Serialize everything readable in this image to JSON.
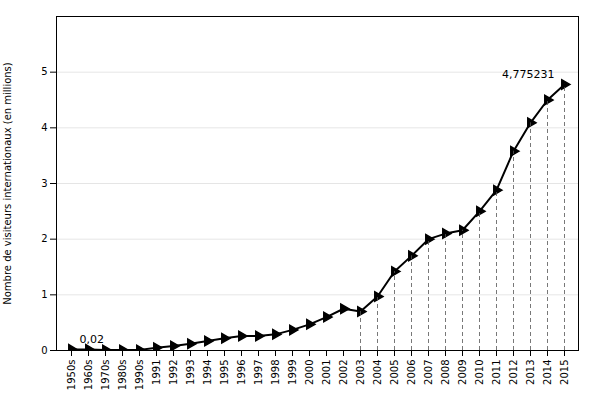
{
  "chart_data": {
    "type": "line",
    "categories": [
      "1950s",
      "1960s",
      "1970s",
      "1980s",
      "1990s",
      "1991",
      "1992",
      "1993",
      "1994",
      "1995",
      "1996",
      "1997",
      "1998",
      "1999",
      "2000",
      "2001",
      "2002",
      "2003",
      "2004",
      "2005",
      "2006",
      "2007",
      "2008",
      "2009",
      "2010",
      "2011",
      "2012",
      "2013",
      "2014",
      "2015"
    ],
    "series": [
      {
        "type": "line",
        "color": "#000000",
        "marker": "triangle-right",
        "values": [
          0.02,
          0.02,
          0.01,
          0.01,
          0.01,
          0.05,
          0.08,
          0.12,
          0.17,
          0.22,
          0.26,
          0.26,
          0.29,
          0.37,
          0.47,
          0.6,
          0.75,
          0.7,
          0.97,
          1.42,
          1.7,
          2.0,
          2.1,
          2.16,
          2.5,
          2.88,
          3.58,
          4.09,
          4.5,
          4.78
        ]
      },
      {
        "type": "rule",
        "color": "#555555",
        "line_style": "dashed",
        "values": [
          null,
          null,
          null,
          null,
          null,
          null,
          null,
          null,
          null,
          null,
          null,
          null,
          null,
          null,
          null,
          null,
          null,
          0.7,
          0.97,
          1.42,
          1.7,
          2.0,
          2.1,
          2.16,
          2.5,
          2.88,
          3.58,
          4.09,
          4.5,
          4.78
        ]
      }
    ],
    "annotations": [
      {
        "text": "0,02",
        "category": "1950s",
        "value": 0.02
      },
      {
        "text": "4,775231",
        "category": "2015",
        "value": 4.78
      }
    ],
    "ylabel": "Nombre de visiteurs internationaux (en millions)",
    "ylim": [
      0,
      6
    ],
    "yticks": [
      0,
      1,
      2,
      3,
      4,
      5
    ],
    "grid": true
  }
}
